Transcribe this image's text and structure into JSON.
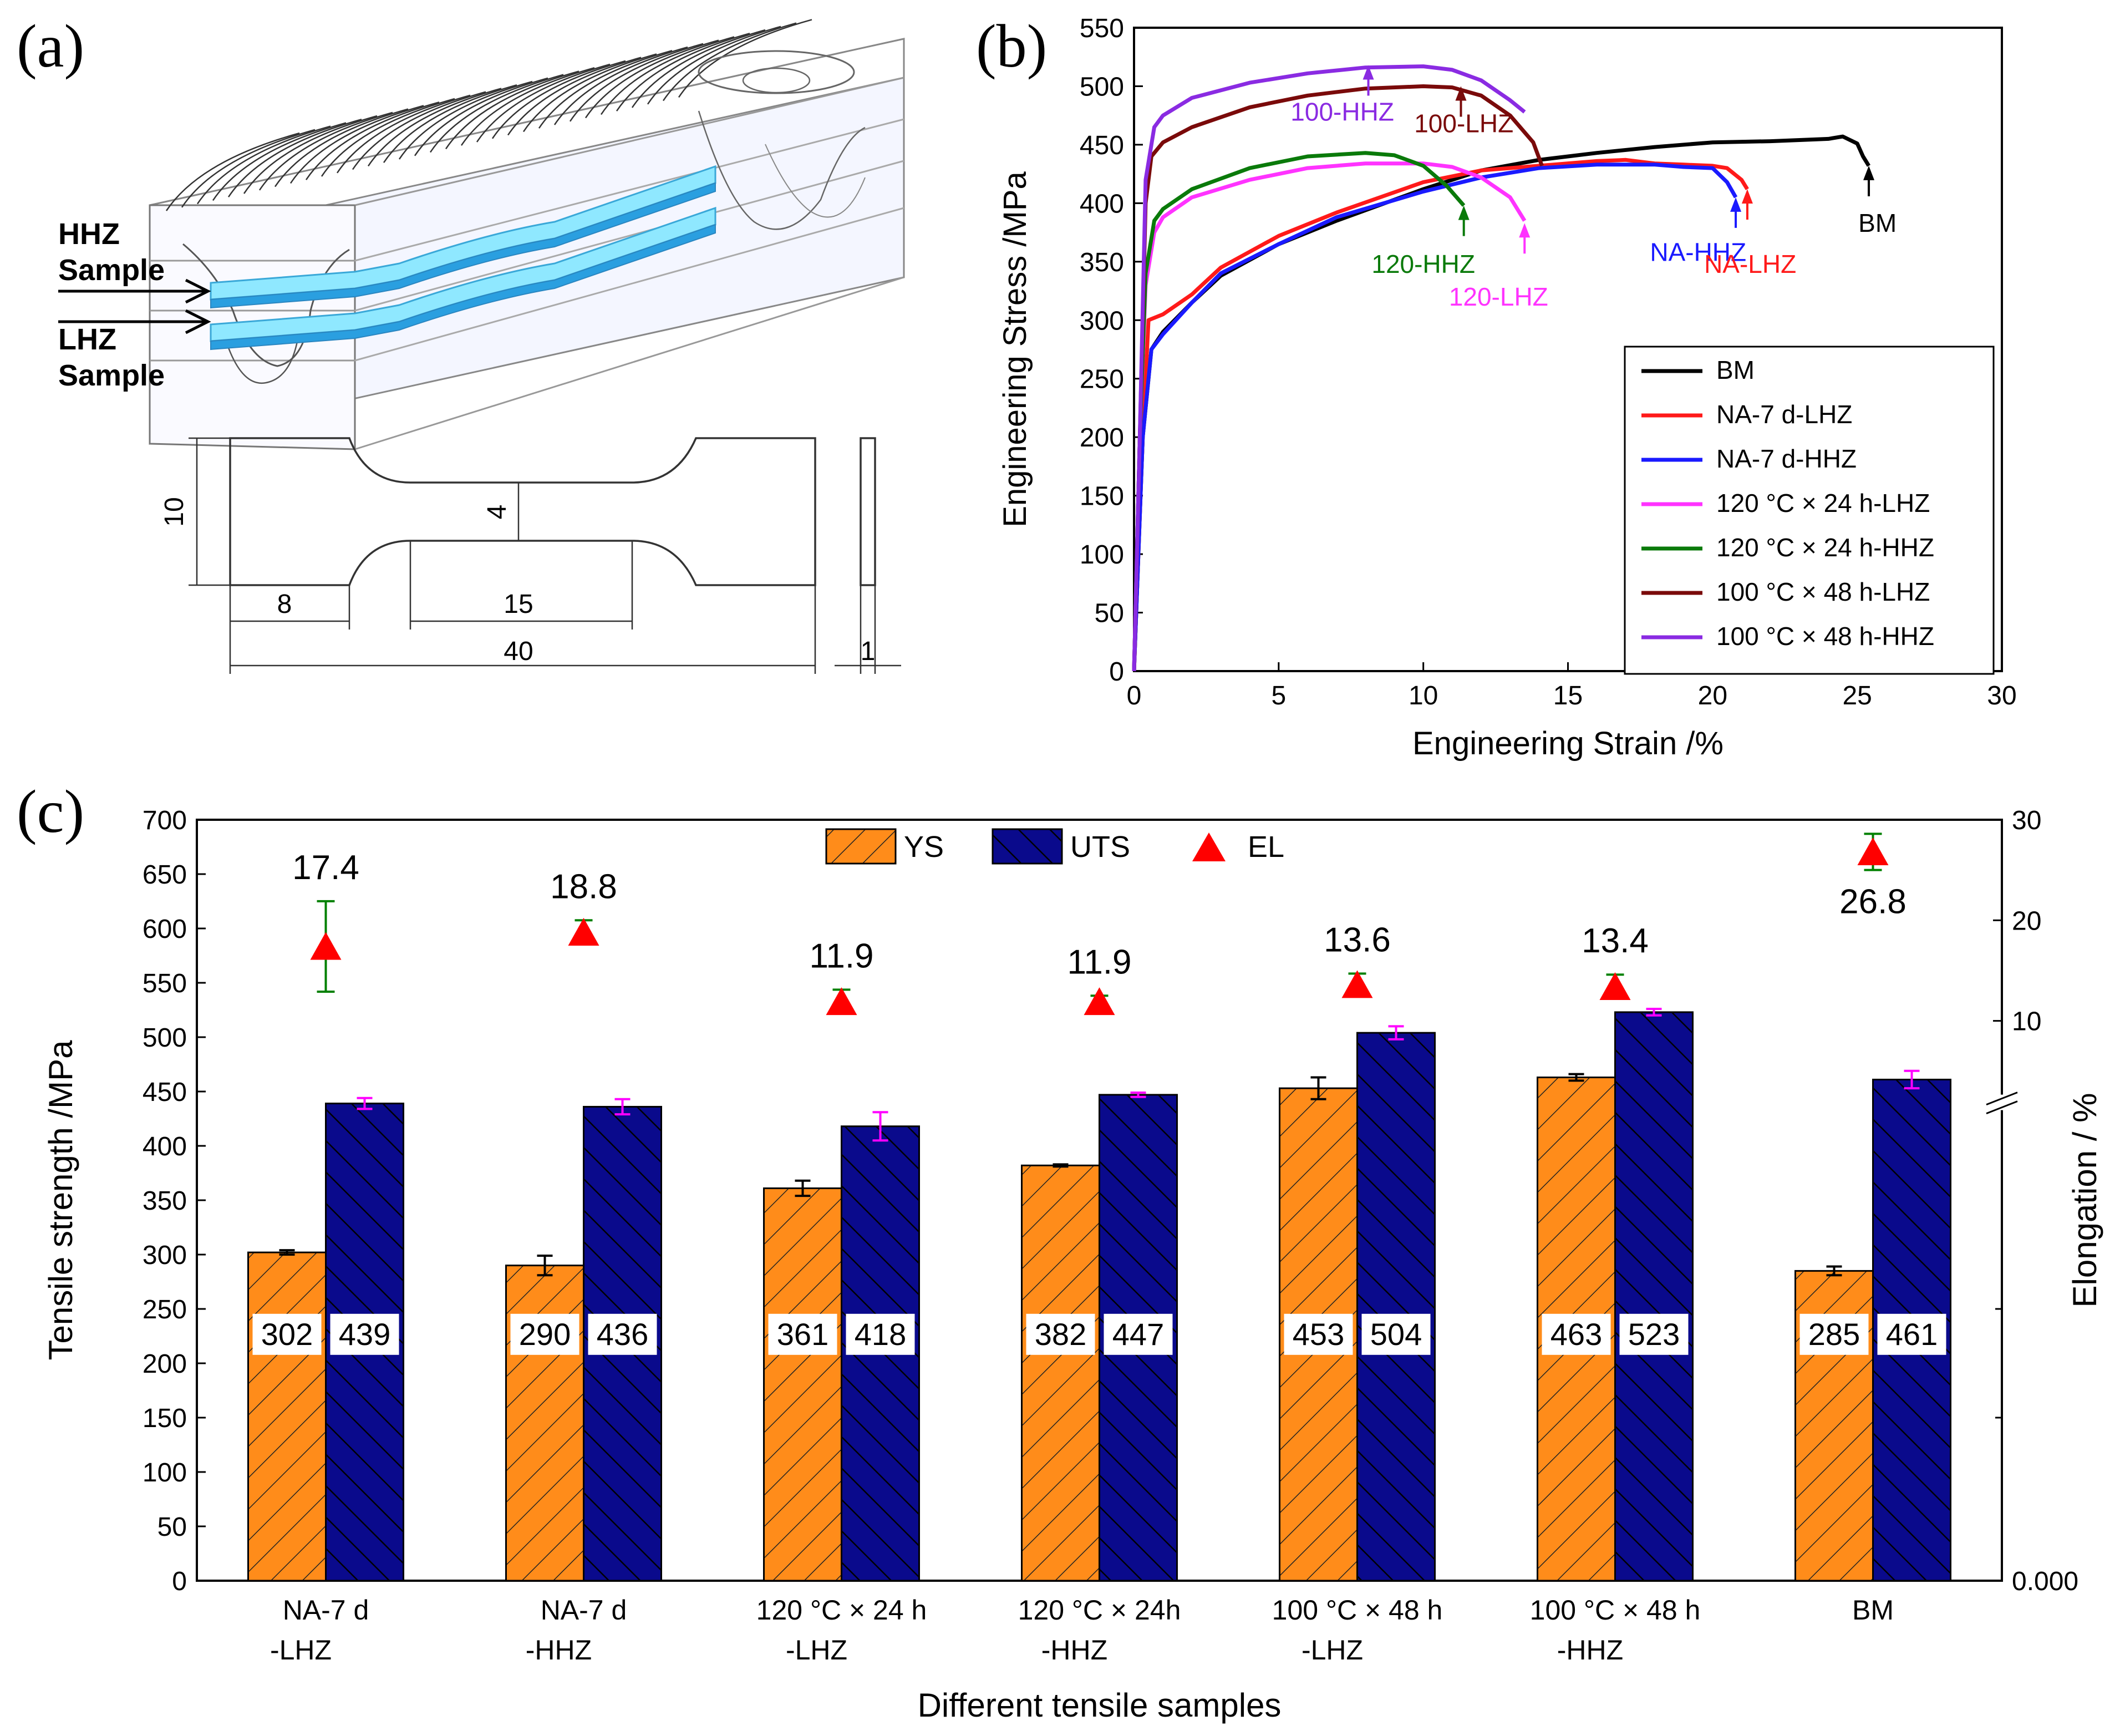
{
  "panels": {
    "a": {
      "label": "(a)",
      "hhz_label_line1": "HHZ",
      "hhz_label_line2": "Sample",
      "lhz_label_line1": "LHZ",
      "lhz_label_line2": "Sample",
      "dimensions": {
        "width": "10",
        "gauge_width": "4",
        "grip": "8",
        "gauge_length": "15",
        "total_length": "40",
        "thickness": "1"
      }
    },
    "b": {
      "label": "(b)"
    },
    "c": {
      "label": "(c)"
    }
  },
  "colors": {
    "BM": "#000000",
    "NA-7 d-LHZ": "#ff1a1a",
    "NA-7 d-HHZ": "#1a1aff",
    "120 °C × 24 h-LHZ": "#ff33ff",
    "120 °C × 24 h-HHZ": "#0a7a0a",
    "100 °C × 48 h-LHZ": "#7a0a0a",
    "100 °C × 48 h-HHZ": "#8a2be2",
    "ys_bar": "#ff8c1a",
    "uts_bar": "#0a0a8c",
    "el_marker": "#ff0000",
    "el_error": "#008000",
    "uts_error": "#ff00ff",
    "hhz_specimen": "#8fe8ff"
  },
  "chart_data": [
    {
      "type": "line",
      "title": "",
      "xlabel": "Engineering Strain /%",
      "ylabel": "Engineering Stress /MPa",
      "xlim": [
        0,
        30
      ],
      "ylim": [
        0,
        550
      ],
      "xticks": [
        0,
        5,
        10,
        15,
        20,
        25,
        30
      ],
      "yticks": [
        0,
        50,
        100,
        150,
        200,
        250,
        300,
        350,
        400,
        450,
        500,
        550
      ],
      "legend_position": "bottom-right",
      "series": [
        {
          "name": "BM",
          "color_key": "BM",
          "points": [
            [
              0,
              0
            ],
            [
              0.3,
              200
            ],
            [
              0.6,
              275
            ],
            [
              1,
              290
            ],
            [
              2,
              315
            ],
            [
              3,
              338
            ],
            [
              5,
              365
            ],
            [
              7,
              385
            ],
            [
              10,
              412
            ],
            [
              12,
              428
            ],
            [
              14,
              437
            ],
            [
              16,
              443
            ],
            [
              18,
              448
            ],
            [
              20,
              452
            ],
            [
              22,
              453
            ],
            [
              24,
              455
            ],
            [
              24.5,
              457
            ],
            [
              25,
              451
            ],
            [
              25.2,
              440
            ],
            [
              25.4,
              432
            ]
          ]
        },
        {
          "name": "NA-7 d-LHZ",
          "color_key": "NA-7 d-LHZ",
          "points": [
            [
              0,
              0
            ],
            [
              0.3,
              200
            ],
            [
              0.5,
              300
            ],
            [
              1,
              305
            ],
            [
              2,
              322
            ],
            [
              3,
              345
            ],
            [
              5,
              372
            ],
            [
              7,
              392
            ],
            [
              10,
              418
            ],
            [
              12,
              428
            ],
            [
              14,
              432
            ],
            [
              16,
              436
            ],
            [
              17,
              437
            ],
            [
              18,
              434
            ],
            [
              19,
              433
            ],
            [
              20,
              432
            ],
            [
              20.5,
              430
            ],
            [
              21,
              420
            ],
            [
              21.2,
              412
            ]
          ]
        },
        {
          "name": "NA-7 d-HHZ",
          "color_key": "NA-7 d-HHZ",
          "points": [
            [
              0,
              0
            ],
            [
              0.3,
              200
            ],
            [
              0.6,
              275
            ],
            [
              1,
              288
            ],
            [
              2,
              315
            ],
            [
              3,
              340
            ],
            [
              5,
              365
            ],
            [
              7,
              388
            ],
            [
              10,
              410
            ],
            [
              12,
              422
            ],
            [
              14,
              430
            ],
            [
              16,
              433
            ],
            [
              18,
              433
            ],
            [
              19,
              431
            ],
            [
              20,
              430
            ],
            [
              20.5,
              418
            ],
            [
              20.8,
              405
            ]
          ]
        },
        {
          "name": "120 °C × 24 h-LHZ",
          "color_key": "120 °C × 24 h-LHZ",
          "points": [
            [
              0,
              0
            ],
            [
              0.2,
              200
            ],
            [
              0.4,
              330
            ],
            [
              0.7,
              375
            ],
            [
              1,
              388
            ],
            [
              2,
              405
            ],
            [
              4,
              420
            ],
            [
              6,
              430
            ],
            [
              8,
              434
            ],
            [
              10,
              434
            ],
            [
              11,
              431
            ],
            [
              12,
              422
            ],
            [
              13,
              405
            ],
            [
              13.5,
              385
            ]
          ]
        },
        {
          "name": "120 °C × 24 h-HHZ",
          "color_key": "120 °C × 24 h-HHZ",
          "points": [
            [
              0,
              0
            ],
            [
              0.2,
              200
            ],
            [
              0.4,
              340
            ],
            [
              0.7,
              385
            ],
            [
              1,
              395
            ],
            [
              2,
              412
            ],
            [
              4,
              430
            ],
            [
              6,
              440
            ],
            [
              8,
              443
            ],
            [
              9,
              441
            ],
            [
              10,
              432
            ],
            [
              10.8,
              415
            ],
            [
              11.4,
              398
            ]
          ]
        },
        {
          "name": "100 °C × 48 h-LHZ",
          "color_key": "100 °C × 48 h-LHZ",
          "points": [
            [
              0,
              0
            ],
            [
              0.2,
              200
            ],
            [
              0.4,
              400
            ],
            [
              0.6,
              440
            ],
            [
              1,
              452
            ],
            [
              2,
              465
            ],
            [
              4,
              482
            ],
            [
              6,
              492
            ],
            [
              8,
              498
            ],
            [
              10,
              500
            ],
            [
              11,
              499
            ],
            [
              12,
              492
            ],
            [
              13,
              475
            ],
            [
              13.8,
              452
            ],
            [
              14.1,
              432
            ]
          ]
        },
        {
          "name": "100 °C × 48 h-HHZ",
          "color_key": "100 °C × 48 h-HHZ",
          "points": [
            [
              0,
              0
            ],
            [
              0.2,
              200
            ],
            [
              0.4,
              420
            ],
            [
              0.7,
              465
            ],
            [
              1,
              475
            ],
            [
              2,
              490
            ],
            [
              4,
              503
            ],
            [
              6,
              511
            ],
            [
              8,
              516
            ],
            [
              10,
              517
            ],
            [
              11,
              514
            ],
            [
              12,
              505
            ],
            [
              13,
              488
            ],
            [
              13.5,
              478
            ]
          ]
        }
      ],
      "annotations": [
        {
          "text": "100-HHZ",
          "color_key": "100 °C × 48 h-HHZ",
          "arrow_to": [
            8.1,
            518
          ],
          "label_at": [
            7.2,
            480
          ]
        },
        {
          "text": "100-LHZ",
          "color_key": "100 °C × 48 h-LHZ",
          "arrow_to": [
            11.3,
            500
          ],
          "label_at": [
            11.4,
            470
          ]
        },
        {
          "text": "120-HHZ",
          "color_key": "120 °C × 24 h-HHZ",
          "arrow_to": [
            11.4,
            398
          ],
          "label_at": [
            10.0,
            350
          ]
        },
        {
          "text": "120-LHZ",
          "color_key": "120 °C × 24 h-LHZ",
          "arrow_to": [
            13.5,
            383
          ],
          "label_at": [
            12.6,
            322
          ]
        },
        {
          "text": "NA-HHZ",
          "color_key": "NA-7 d-HHZ",
          "arrow_to": [
            20.8,
            405
          ],
          "label_at": [
            19.5,
            360
          ]
        },
        {
          "text": "NA-LHZ",
          "color_key": "NA-7 d-LHZ",
          "arrow_to": [
            21.2,
            412
          ],
          "label_at": [
            21.3,
            350
          ]
        },
        {
          "text": "BM",
          "color_key": "BM",
          "arrow_to": [
            25.4,
            432
          ],
          "label_at": [
            25.7,
            385
          ]
        }
      ]
    },
    {
      "type": "bar",
      "title": "",
      "xlabel": "Different tensile samples",
      "ylabel": "Tensile strength /MPa",
      "ylabel_right": "Elongation / %",
      "ylim": [
        0,
        700
      ],
      "yticks": [
        0,
        50,
        100,
        150,
        200,
        250,
        300,
        350,
        400,
        450,
        500,
        550,
        600,
        650,
        700
      ],
      "right_axis_ticks": [
        {
          "label": "0.000",
          "value": 0
        },
        {
          "label": "10",
          "value": 10
        },
        {
          "label": "20",
          "value": 20
        },
        {
          "label": "30",
          "value": 30
        }
      ],
      "right_axis_break_at_mpa": 440,
      "el_axis_mpa_per_pct": 9.25,
      "el_axis_zero_mpa": 422.5,
      "legend": [
        "YS",
        "UTS",
        "EL"
      ],
      "legend_position": "top-center",
      "categories": [
        [
          "NA-7 d",
          "-LHZ"
        ],
        [
          "NA-7 d",
          "-HHZ"
        ],
        [
          "120 °C × 24 h",
          "-LHZ"
        ],
        [
          "120 °C × 24h",
          "-HHZ"
        ],
        [
          "100 °C × 48 h",
          "-LHZ"
        ],
        [
          "100 °C × 48 h",
          "-HHZ"
        ],
        [
          "BM"
        ]
      ],
      "series": [
        {
          "name": "YS",
          "values": [
            302,
            290,
            361,
            382,
            453,
            463,
            285
          ],
          "errors": [
            2,
            9,
            7,
            1,
            10,
            3,
            4
          ],
          "labels": [
            "302",
            "290",
            "361",
            "382",
            "453",
            "463",
            "285"
          ]
        },
        {
          "name": "UTS",
          "values": [
            439,
            436,
            418,
            447,
            504,
            523,
            461
          ],
          "errors": [
            5,
            7,
            13,
            2,
            6,
            3,
            8
          ],
          "labels": [
            "439",
            "436",
            "418",
            "447",
            "504",
            "523",
            "461"
          ]
        },
        {
          "name": "EL",
          "values": [
            17.4,
            18.8,
            11.9,
            11.9,
            13.6,
            13.4,
            26.8
          ],
          "errors": [
            4.5,
            1.2,
            1.2,
            0.6,
            1.1,
            1.2,
            1.8
          ],
          "labels": [
            "17.4",
            "18.8",
            "11.9",
            "11.9",
            "13.6",
            "13.4",
            "26.8"
          ]
        }
      ]
    }
  ]
}
